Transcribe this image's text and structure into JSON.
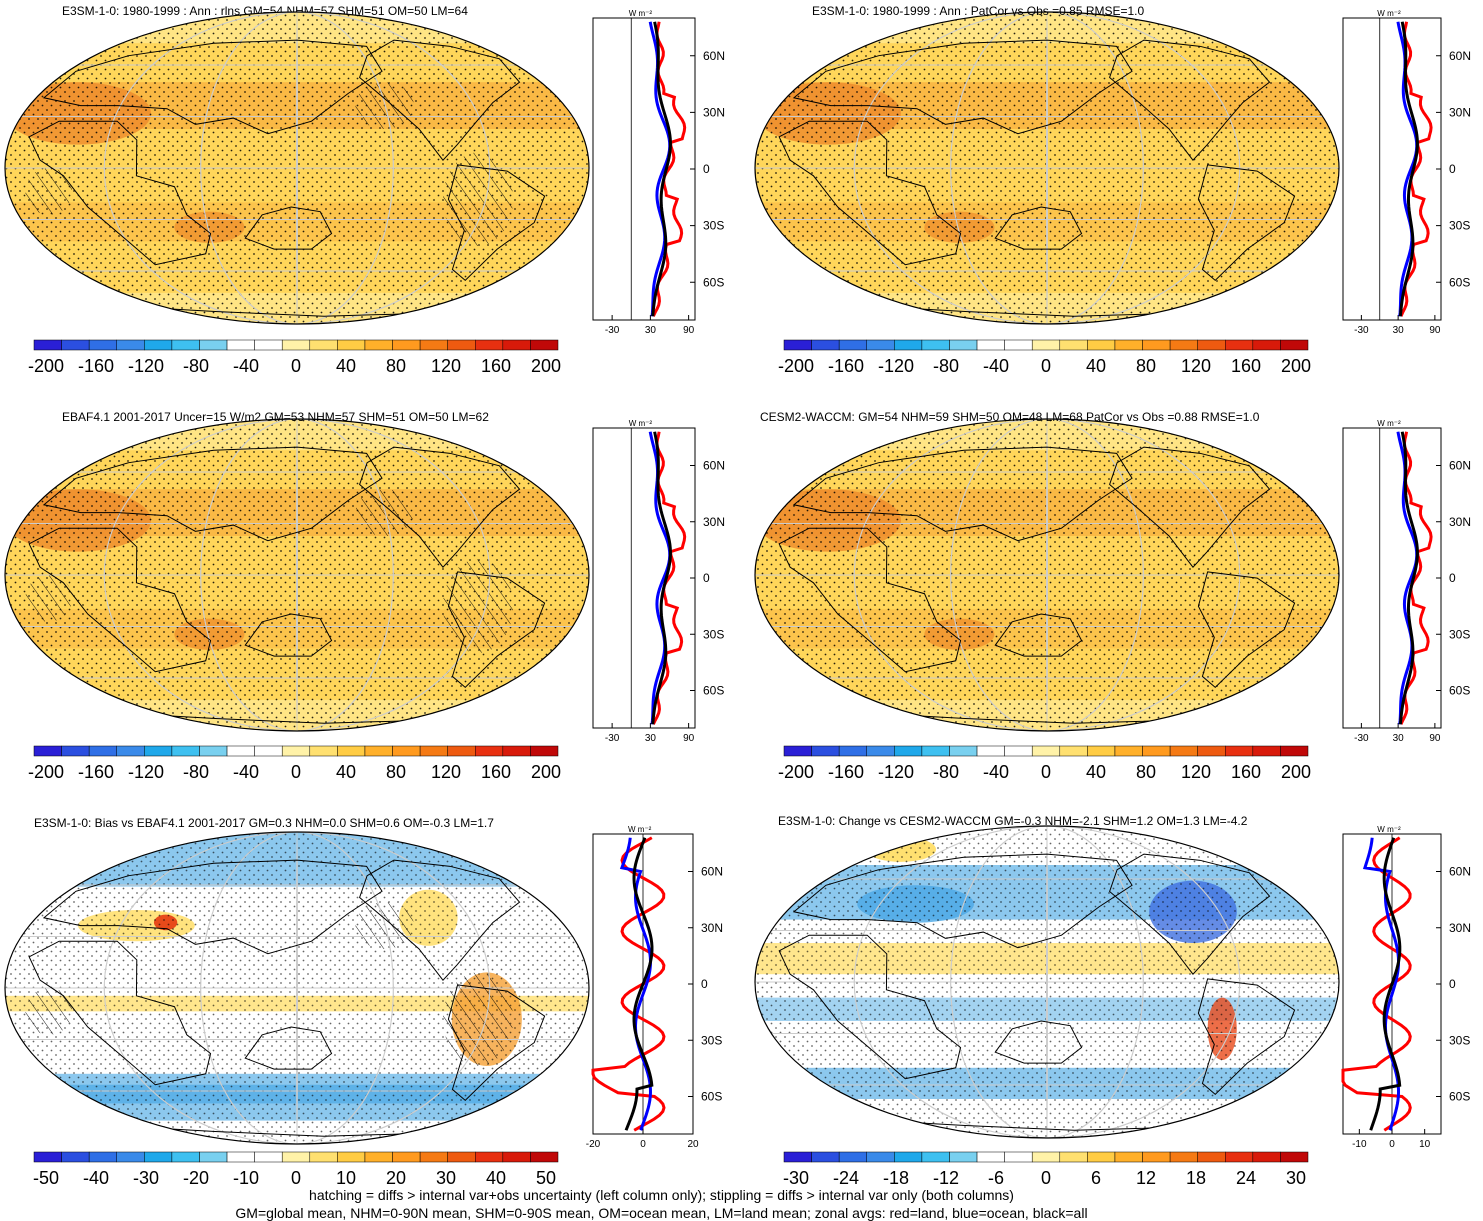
{
  "panels": [
    {
      "title": "E3SM-1-0: 1980-1999 : Ann : rlns GM=54 NHM=57 SHM=51 OM=50 LM=64",
      "map_type": "field",
      "hatched": true,
      "colorbar_ticks": [
        "-200",
        "-160",
        "-120",
        "-80",
        "-40",
        "0",
        "40",
        "80",
        "120",
        "160",
        "200"
      ],
      "zonal_ticks": [
        "-30",
        "30",
        "90"
      ],
      "zonal_range": [
        -60,
        100
      ],
      "zonal_zero": 0,
      "unit": "W m⁻²",
      "lat_labels": [
        "60N",
        "30N",
        "0",
        "30S",
        "60S"
      ]
    },
    {
      "title": "E3SM-1-0: 1980-1999 : Ann : PatCor vs Obs =0.85 RMSE=1.0",
      "map_type": "field",
      "hatched": false,
      "colorbar_ticks": [
        "-200",
        "-160",
        "-120",
        "-80",
        "-40",
        "0",
        "40",
        "80",
        "120",
        "160",
        "200"
      ],
      "zonal_ticks": [
        "-30",
        "30",
        "90"
      ],
      "zonal_range": [
        -60,
        100
      ],
      "zonal_zero": 0,
      "unit": "W m⁻²",
      "lat_labels": [
        "60N",
        "30N",
        "0",
        "30S",
        "60S"
      ]
    },
    {
      "title": "EBAF4.1 2001-2017 Uncer=15 W/m2 GM=53 NHM=57 SHM=51 OM=50 LM=62",
      "map_type": "field",
      "hatched": true,
      "colorbar_ticks": [
        "-200",
        "-160",
        "-120",
        "-80",
        "-40",
        "0",
        "40",
        "80",
        "120",
        "160",
        "200"
      ],
      "zonal_ticks": [
        "-30",
        "30",
        "90"
      ],
      "zonal_range": [
        -60,
        100
      ],
      "zonal_zero": 0,
      "unit": "W m⁻²",
      "lat_labels": [
        "60N",
        "30N",
        "0",
        "30S",
        "60S"
      ]
    },
    {
      "title": "CESM2-WACCM: GM=54 NHM=59 SHM=50 OM=48 LM=68 PatCor vs Obs =0.88 RMSE=1.0",
      "map_type": "field",
      "hatched": false,
      "colorbar_ticks": [
        "-200",
        "-160",
        "-120",
        "-80",
        "-40",
        "0",
        "40",
        "80",
        "120",
        "160",
        "200"
      ],
      "zonal_ticks": [
        "-30",
        "30",
        "90"
      ],
      "zonal_range": [
        -60,
        100
      ],
      "zonal_zero": 0,
      "unit": "W m⁻²",
      "lat_labels": [
        "60N",
        "30N",
        "0",
        "30S",
        "60S"
      ]
    },
    {
      "title": "E3SM-1-0: Bias vs EBAF4.1 2001-2017 GM=0.3 NHM=0.0 SHM=0.6 OM=-0.3 LM=1.7",
      "map_type": "bias",
      "hatched": true,
      "colorbar_ticks": [
        "-50",
        "-40",
        "-30",
        "-20",
        "-10",
        "0",
        "10",
        "20",
        "30",
        "40",
        "50"
      ],
      "zonal_ticks": [
        "-20",
        "0",
        "20"
      ],
      "zonal_range": [
        -20,
        20
      ],
      "zonal_zero": 0,
      "unit": "W m⁻²",
      "lat_labels": [
        "60N",
        "30N",
        "0",
        "30S",
        "60S"
      ]
    },
    {
      "title": "E3SM-1-0: Change vs CESM2-WACCM GM=-0.3 NHM=-2.1 SHM=1.2 OM=1.3 LM=-4.2",
      "map_type": "change",
      "hatched": false,
      "colorbar_ticks": [
        "-30",
        "-24",
        "-18",
        "-12",
        "-6",
        "0",
        "6",
        "12",
        "18",
        "24",
        "30"
      ],
      "zonal_ticks": [
        "-10",
        "0",
        "10"
      ],
      "zonal_range": [
        -15,
        15
      ],
      "zonal_zero": 0,
      "unit": "W m⁻²",
      "lat_labels": [
        "60N",
        "30N",
        "0",
        "30S",
        "60S"
      ]
    }
  ],
  "colorbar_colors": [
    "#2a1fd6",
    "#2b4fe0",
    "#2f6fe6",
    "#3a8ae9",
    "#1fa8ea",
    "#3ec0f0",
    "#79d0ef",
    "#ffffff",
    "#ffffff",
    "#fff2a8",
    "#ffe070",
    "#ffcc44",
    "#ffb02a",
    "#ff9a1f",
    "#f57a14",
    "#ee5a10",
    "#e83010",
    "#d81a0a",
    "#c00808"
  ],
  "map_colors": {
    "field_base": "#ffd65a",
    "field_high": "#f5a235",
    "field_very_high": "#ee8a2a",
    "field_low": "#ffe890",
    "white": "#ffffff",
    "blue_light": "#8cc8ee",
    "blue_mid": "#4aa8e6",
    "blue_dark": "#3f6fe0",
    "yellow": "#ffe070",
    "orange": "#f5a035",
    "red": "#e84a1a"
  },
  "zonal_lines": {
    "land": "#ff0000",
    "ocean": "#0000ff",
    "all": "#000000"
  },
  "footnotes": [
    "hatching = diffs > internal var+obs uncertainty (left column only); stippling = diffs > internal var only (both columns)",
    "GM=global mean, NHM=0-90N mean, SHM=0-90S mean, OM=ocean mean, LM=land mean; zonal avgs: red=land, blue=ocean, black=all"
  ]
}
